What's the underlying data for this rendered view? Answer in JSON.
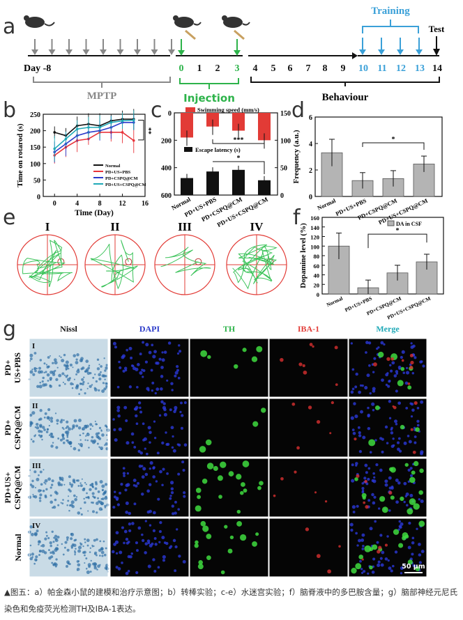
{
  "panel_letters": [
    "a",
    "b",
    "c",
    "d",
    "e",
    "f",
    "g"
  ],
  "timeline": {
    "start_label": "Day -8",
    "days": [
      "0",
      "1",
      "2",
      "3",
      "4",
      "5",
      "6",
      "7",
      "8",
      "9",
      "10",
      "11",
      "12",
      "13",
      "14"
    ],
    "mptp_label": "MPTP",
    "injection_label": "Injection",
    "behaviour_label": "Behaviour",
    "training_label": "Training",
    "test_label": "Test",
    "colors": {
      "injection": "#2db34a",
      "training": "#3aa0d8",
      "gray": "#888888"
    }
  },
  "chart_data": [
    {
      "id": "b",
      "type": "line",
      "xlabel": "Time (Day)",
      "ylabel": "Time on rotarod (s)",
      "xlim": [
        -2,
        16
      ],
      "ylim": [
        0,
        250
      ],
      "xticks": [
        0,
        4,
        8,
        12,
        16
      ],
      "yticks": [
        0,
        50,
        100,
        150,
        200,
        250
      ],
      "x": [
        0,
        2,
        4,
        6,
        8,
        10,
        12,
        14
      ],
      "significance": "**",
      "series": [
        {
          "name": "Normal",
          "color": "#111111",
          "values": [
            195,
            185,
            215,
            220,
            215,
            230,
            235,
            235
          ]
        },
        {
          "name": "PD+US+PBS",
          "color": "#e8333a",
          "values": [
            125,
            150,
            170,
            175,
            195,
            195,
            195,
            170
          ]
        },
        {
          "name": "PD+CSPQ@CM",
          "color": "#2a39c9",
          "values": [
            135,
            160,
            185,
            195,
            200,
            210,
            225,
            225
          ]
        },
        {
          "name": "PD+US+CSPQ@CM",
          "color": "#1fa9b7",
          "values": [
            145,
            175,
            205,
            210,
            210,
            225,
            230,
            232
          ]
        }
      ]
    },
    {
      "id": "c",
      "type": "bar",
      "categories": [
        "Normal",
        "PD+US+PBS",
        "PD+CSPQ@CM",
        "PD+US+CSPQ@CM"
      ],
      "series": [
        {
          "name": "Swimming speed (mm/s)",
          "color": "#e23b36",
          "values": [
            180,
            100,
            130,
            200
          ]
        },
        {
          "name": "Escape latency (s)",
          "color": "#111111",
          "values": [
            31,
            43,
            46,
            27
          ]
        }
      ],
      "left_ylim": [
        0,
        600
      ],
      "left_yticks": [
        0,
        200,
        400,
        600
      ],
      "right_ylim": [
        0,
        150
      ],
      "right_yticks": [
        0,
        50,
        100,
        150
      ],
      "significance": [
        "***",
        "*"
      ]
    },
    {
      "id": "d",
      "type": "bar",
      "ylabel": "Frequency (a.u.)",
      "categories": [
        "Normal",
        "PD+US+PBS",
        "PD+CSPQ@CM",
        "PD+US+CSPQ@CM"
      ],
      "values": [
        3.3,
        1.2,
        1.35,
        2.45
      ],
      "ylim": [
        0,
        6
      ],
      "yticks": [
        0,
        2,
        4,
        6
      ],
      "significance": "*"
    },
    {
      "id": "f",
      "type": "bar",
      "ylabel": "Dopamine level (%)",
      "legend": "DA in CSF",
      "categories": [
        "Normal",
        "PD+US+PBS",
        "PD+CSPQ@CM",
        "PD+US+CSPQ@CM"
      ],
      "values": [
        100,
        13,
        44,
        67
      ],
      "ylim": [
        0,
        160
      ],
      "yticks": [
        0,
        20,
        40,
        60,
        80,
        100,
        120,
        140,
        160
      ],
      "significance": "*"
    }
  ],
  "maze_labels": [
    "I",
    "II",
    "III",
    "IV"
  ],
  "grid": {
    "columns": [
      {
        "label": "Nissl",
        "color": "#111111"
      },
      {
        "label": "DAPI",
        "color": "#2a39c9"
      },
      {
        "label": "TH",
        "color": "#2db34a"
      },
      {
        "label": "IBA-1",
        "color": "#e23b36"
      },
      {
        "label": "Merge",
        "color": "#1fa9b7"
      }
    ],
    "rows": [
      {
        "numeral": "I",
        "label": "PD+\nUS+PBS"
      },
      {
        "numeral": "II",
        "label": "PD+\nCSPQ@CM"
      },
      {
        "numeral": "III",
        "label": "PD+US+\nCSPQ@CM"
      },
      {
        "numeral": "IV",
        "label": "Normal"
      }
    ],
    "scale_bar": "50 μm"
  },
  "caption": "▲图五：a）帕金森小鼠的建模和治疗示意图；b）转棒实验；c-e）水迷宫实验；f）脑脊液中的多巴胺含量；g）脑部神经元尼氏染色和免疫荧光检测TH及IBA-1表达。"
}
